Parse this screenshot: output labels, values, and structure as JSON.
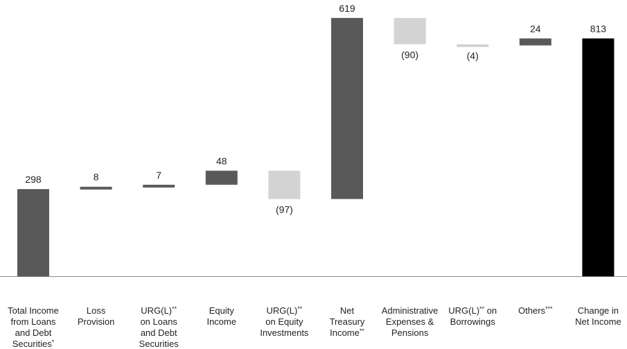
{
  "chart_data": {
    "type": "bar",
    "subtype": "waterfall",
    "title": "",
    "xlabel": "",
    "ylabel": "",
    "grid": false,
    "legend": "none",
    "categories": [
      "Total Income from Loans and Debt Securities*",
      "Loss Provision",
      "URG(L)** on Loans and Debt Securities",
      "Equity Income",
      "URG(L)** on Equity Investments",
      "Net Treasury Income**",
      "Administrative Expenses & Pensions",
      "URG(L)** on Borrowings",
      "Others***",
      "Change in Net Income"
    ],
    "values": [
      298,
      8,
      7,
      48,
      -97,
      619,
      -90,
      -4,
      24,
      813
    ],
    "value_labels": [
      "298",
      "8",
      "7",
      "48",
      "(97)",
      "619",
      "(90)",
      "(4)",
      "24",
      "813"
    ],
    "bar_kind": [
      "total",
      "delta",
      "delta",
      "delta",
      "delta",
      "delta",
      "delta",
      "delta",
      "delta",
      "total"
    ],
    "category_lines": [
      [
        {
          "t": "Total Income"
        },
        {
          "t": "from Loans"
        },
        {
          "t": "and Debt"
        },
        {
          "t": "Securities",
          "sup": "*"
        }
      ],
      [
        {
          "t": "Loss"
        },
        {
          "t": "Provision"
        }
      ],
      [
        {
          "t": "URG(L)",
          "sup": "**"
        },
        {
          "t": "on Loans"
        },
        {
          "t": "and Debt"
        },
        {
          "t": "Securities"
        }
      ],
      [
        {
          "t": "Equity"
        },
        {
          "t": "Income"
        }
      ],
      [
        {
          "t": "URG(L)",
          "sup": "**"
        },
        {
          "t": "on Equity"
        },
        {
          "t": "Investments"
        }
      ],
      [
        {
          "t": "Net"
        },
        {
          "t": "Treasury"
        },
        {
          "t": "Income",
          "sup": "**"
        }
      ],
      [
        {
          "t": "Administrative"
        },
        {
          "t": "Expenses &"
        },
        {
          "t": "Pensions"
        }
      ],
      [
        {
          "t": "URG(L)",
          "sup": "**",
          "tail": " on"
        },
        {
          "t": "Borrowings"
        }
      ],
      [
        {
          "t": "Others",
          "sup": "***"
        }
      ],
      [
        {
          "t": "Change in"
        },
        {
          "t": "Net Income"
        }
      ]
    ],
    "colors": {
      "increase": "#595959",
      "decrease": "#d3d3d3",
      "final_total": "#000000",
      "axis": "#8c8c8c"
    }
  }
}
